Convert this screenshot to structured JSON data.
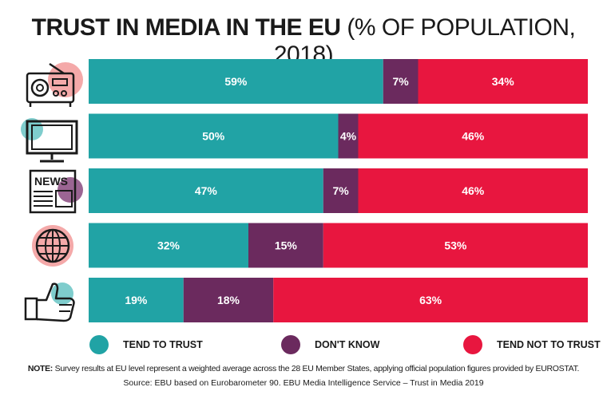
{
  "title": {
    "bold": "TRUST IN MEDIA IN THE EU",
    "normal": "(% OF POPULATION, 2018)"
  },
  "colors": {
    "trust": "#21a3a5",
    "dont_know": "#6b2a5e",
    "not_trust": "#e8163f"
  },
  "chart_data": {
    "type": "bar",
    "orientation": "horizontal",
    "stacked": true,
    "categories": [
      "radio-icon",
      "tv-icon",
      "newspaper-icon",
      "internet-icon",
      "social-network-icon"
    ],
    "series": [
      {
        "name": "TEND TO TRUST",
        "values": [
          59,
          50,
          47,
          32,
          19
        ],
        "labels": [
          "59%",
          "50%",
          "47%",
          "32%",
          "19%"
        ]
      },
      {
        "name": "DON'T KNOW",
        "values": [
          7,
          4,
          7,
          15,
          18
        ],
        "labels": [
          "7%",
          "4%",
          "7%",
          "15%",
          "18%"
        ]
      },
      {
        "name": "TEND NOT TO TRUST",
        "values": [
          34,
          46,
          46,
          53,
          63
        ],
        "labels": [
          "34%",
          "46%",
          "46%",
          "53%",
          "63%"
        ]
      }
    ],
    "xlim": [
      0,
      100
    ],
    "legend": "bottom"
  },
  "legend": {
    "trust": "TEND TO TRUST",
    "dont_know": "DON'T KNOW",
    "not_trust": "TEND NOT TO TRUST"
  },
  "note": {
    "label": "NOTE:",
    "text": " Survey results at EU level represent a weighted average across the 28 EU Member States, applying official population figures provided by EUROSTAT."
  },
  "source": "Source: EBU based on Eurobarometer 90. EBU Media Intelligence Service – Trust in Media 2019",
  "icons": [
    "radio-icon",
    "tv-icon",
    "newspaper-icon",
    "globe-icon",
    "thumbs-up-icon"
  ],
  "newspaper_text": "NEWS"
}
